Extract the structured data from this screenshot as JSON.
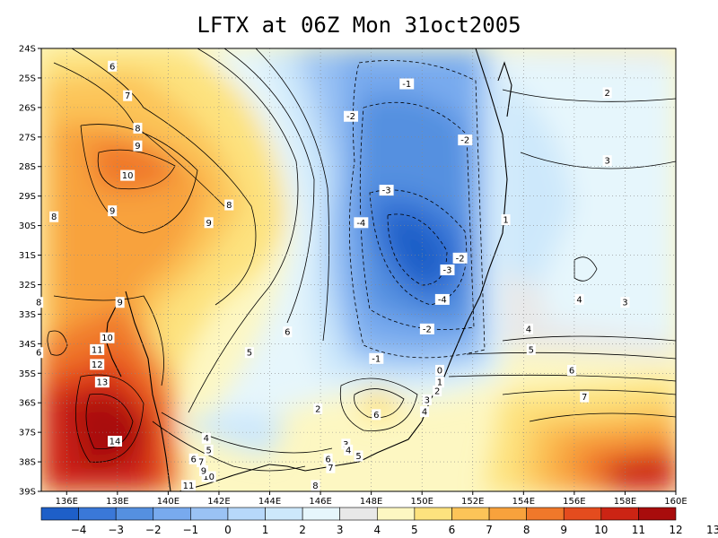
{
  "title": "LFTX at 06Z Mon 31oct2005",
  "axes": {
    "lon_ticks": [
      "136E",
      "138E",
      "140E",
      "142E",
      "144E",
      "146E",
      "148E",
      "150E",
      "152E",
      "154E",
      "156E",
      "158E",
      "160E"
    ],
    "lat_ticks": [
      "24S",
      "25S",
      "26S",
      "27S",
      "28S",
      "29S",
      "30S",
      "31S",
      "32S",
      "33S",
      "34S",
      "35S",
      "36S",
      "37S",
      "38S",
      "39S"
    ]
  },
  "colorbar": {
    "labels": [
      "-4",
      "-3",
      "-2",
      "-1",
      "0",
      "1",
      "2",
      "3",
      "4",
      "5",
      "6",
      "7",
      "8",
      "9",
      "10",
      "11",
      "12",
      "13"
    ],
    "colors": [
      "#1e5fc8",
      "#3a78d8",
      "#5590e0",
      "#78aaee",
      "#9ac2f4",
      "#b7d8fa",
      "#cde8fb",
      "#e6f6fc",
      "#e8e8e8",
      "#fdf7c2",
      "#fde27e",
      "#fcc458",
      "#f8a23c",
      "#f0782a",
      "#e44c1e",
      "#cc2414",
      "#a80c0c"
    ]
  },
  "contour_labels": [
    {
      "text": "6",
      "lon": 137.8,
      "lat": -24.6
    },
    {
      "text": "7",
      "lon": 138.4,
      "lat": -25.6
    },
    {
      "text": "8",
      "lon": 138.8,
      "lat": -26.7
    },
    {
      "text": "9",
      "lon": 138.8,
      "lat": -27.3
    },
    {
      "text": "10",
      "lon": 138.4,
      "lat": -28.3
    },
    {
      "text": "9",
      "lon": 137.8,
      "lat": -29.5
    },
    {
      "text": "8",
      "lon": 135.5,
      "lat": -29.7
    },
    {
      "text": "8",
      "lon": 142.4,
      "lat": -29.3
    },
    {
      "text": "9",
      "lon": 141.6,
      "lat": -29.9
    },
    {
      "text": "8",
      "lon": 134.9,
      "lat": -32.6
    },
    {
      "text": "9",
      "lon": 138.1,
      "lat": -32.6
    },
    {
      "text": "6",
      "lon": 134.9,
      "lat": -34.3
    },
    {
      "text": "10",
      "lon": 137.6,
      "lat": -33.8
    },
    {
      "text": "11",
      "lon": 137.2,
      "lat": -34.2
    },
    {
      "text": "12",
      "lon": 137.2,
      "lat": -34.7
    },
    {
      "text": "13",
      "lon": 137.4,
      "lat": -35.3
    },
    {
      "text": "14",
      "lon": 137.9,
      "lat": -37.3
    },
    {
      "text": "11",
      "lon": 140.8,
      "lat": -38.8
    },
    {
      "text": "10",
      "lon": 141.6,
      "lat": -38.5
    },
    {
      "text": "9",
      "lon": 141.4,
      "lat": -38.3
    },
    {
      "text": "7",
      "lon": 141.3,
      "lat": -38.0
    },
    {
      "text": "6",
      "lon": 141.0,
      "lat": -37.9
    },
    {
      "text": "5",
      "lon": 141.6,
      "lat": -37.6
    },
    {
      "text": "4",
      "lon": 141.5,
      "lat": -37.2
    },
    {
      "text": "5",
      "lon": 143.2,
      "lat": -34.3
    },
    {
      "text": "6",
      "lon": 144.7,
      "lat": -33.6
    },
    {
      "text": "2",
      "lon": 145.9,
      "lat": -36.2
    },
    {
      "text": "8",
      "lon": 145.8,
      "lat": -38.8
    },
    {
      "text": "6",
      "lon": 148.2,
      "lat": -36.4
    },
    {
      "text": "-1",
      "lon": 148.2,
      "lat": -34.5
    },
    {
      "text": "-1",
      "lon": 149.4,
      "lat": -25.2
    },
    {
      "text": "-2",
      "lon": 147.2,
      "lat": -26.3
    },
    {
      "text": "-2",
      "lon": 151.7,
      "lat": -27.1
    },
    {
      "text": "-3",
      "lon": 148.6,
      "lat": -28.8
    },
    {
      "text": "-4",
      "lon": 147.6,
      "lat": -29.9
    },
    {
      "text": "-2",
      "lon": 151.5,
      "lat": -31.1
    },
    {
      "text": "-3",
      "lon": 151.0,
      "lat": -31.5
    },
    {
      "text": "-4",
      "lon": 150.8,
      "lat": -32.5
    },
    {
      "text": "-2",
      "lon": 150.2,
      "lat": -33.5
    },
    {
      "text": "0",
      "lon": 150.7,
      "lat": -34.9
    },
    {
      "text": "1",
      "lon": 150.7,
      "lat": -35.3
    },
    {
      "text": "2",
      "lon": 150.6,
      "lat": -35.6
    },
    {
      "text": "3",
      "lon": 150.2,
      "lat": -35.9
    },
    {
      "text": "4",
      "lon": 150.1,
      "lat": -36.3
    },
    {
      "text": "1",
      "lon": 153.3,
      "lat": -29.8
    },
    {
      "text": "2",
      "lon": 157.3,
      "lat": -25.5
    },
    {
      "text": "3",
      "lon": 157.3,
      "lat": -27.8
    },
    {
      "text": "4",
      "lon": 156.2,
      "lat": -32.5
    },
    {
      "text": "3",
      "lon": 158.0,
      "lat": -32.6
    },
    {
      "text": "4",
      "lon": 154.2,
      "lat": -33.5
    },
    {
      "text": "5",
      "lon": 154.3,
      "lat": -34.2
    },
    {
      "text": "6",
      "lon": 155.9,
      "lat": -34.9
    },
    {
      "text": "7",
      "lon": 156.4,
      "lat": -35.8
    },
    {
      "text": "3",
      "lon": 147.0,
      "lat": -37.4
    },
    {
      "text": "4",
      "lon": 147.1,
      "lat": -37.6
    },
    {
      "text": "5",
      "lon": 147.5,
      "lat": -37.8
    },
    {
      "text": "6",
      "lon": 146.3,
      "lat": -37.9
    },
    {
      "text": "7",
      "lon": 146.4,
      "lat": -38.2
    }
  ]
}
